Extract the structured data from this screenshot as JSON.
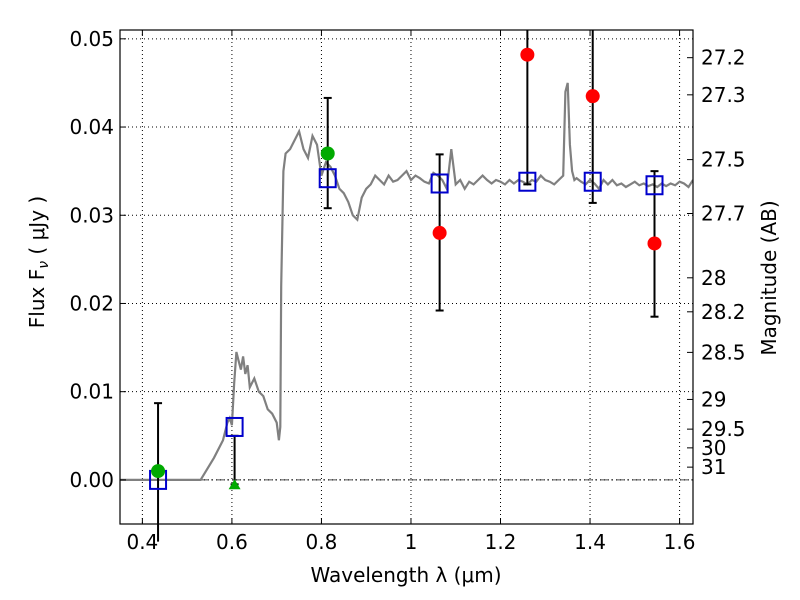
{
  "chart_data": {
    "type": "scatter",
    "xlabel": "Wavelength  λ (μm)",
    "ylabel": "Flux  F",
    "ylabel_sub": "ν",
    "ylabel_unit": " ( μJy )",
    "y2label": "Magnitude (AB)",
    "xlim": [
      0.35,
      1.63
    ],
    "ylim": [
      -0.005,
      0.051
    ],
    "grid": true,
    "x_ticks": [
      {
        "value": 0.4,
        "label": "0.4"
      },
      {
        "value": 0.6,
        "label": "0.6"
      },
      {
        "value": 0.8,
        "label": "0.8"
      },
      {
        "value": 1.0,
        "label": "1"
      },
      {
        "value": 1.2,
        "label": "1.2"
      },
      {
        "value": 1.4,
        "label": "1.4"
      },
      {
        "value": 1.6,
        "label": "1.6"
      }
    ],
    "y_ticks": [
      {
        "value": 0.0,
        "label": "0.00"
      },
      {
        "value": 0.01,
        "label": "0.01"
      },
      {
        "value": 0.02,
        "label": "0.02"
      },
      {
        "value": 0.03,
        "label": "0.03"
      },
      {
        "value": 0.04,
        "label": "0.04"
      },
      {
        "value": 0.05,
        "label": "0.05"
      }
    ],
    "mag_ticks": [
      {
        "value": 27.2,
        "label": "27.2"
      },
      {
        "value": 27.3,
        "label": "27.3"
      },
      {
        "value": 27.5,
        "label": "27.5"
      },
      {
        "value": 27.7,
        "label": "27.7"
      },
      {
        "value": 28.0,
        "label": "28"
      },
      {
        "value": 28.2,
        "label": "28.2"
      },
      {
        "value": 28.5,
        "label": "28.5"
      },
      {
        "value": 29.0,
        "label": "29"
      },
      {
        "value": 29.5,
        "label": "29.5"
      },
      {
        "value": 30.0,
        "label": "30"
      },
      {
        "value": 31.0,
        "label": "31"
      }
    ],
    "model_spectrum": {
      "color": "#808080",
      "x": [
        0.35,
        0.53,
        0.56,
        0.58,
        0.585,
        0.59,
        0.595,
        0.6,
        0.605,
        0.61,
        0.615,
        0.62,
        0.625,
        0.63,
        0.635,
        0.64,
        0.65,
        0.66,
        0.67,
        0.68,
        0.69,
        0.7,
        0.705,
        0.708,
        0.71,
        0.715,
        0.72,
        0.73,
        0.74,
        0.75,
        0.76,
        0.77,
        0.78,
        0.79,
        0.8,
        0.81,
        0.82,
        0.83,
        0.84,
        0.85,
        0.86,
        0.87,
        0.88,
        0.89,
        0.9,
        0.91,
        0.92,
        0.93,
        0.94,
        0.95,
        0.96,
        0.97,
        0.98,
        0.99,
        1.0,
        1.01,
        1.02,
        1.03,
        1.04,
        1.05,
        1.06,
        1.07,
        1.08,
        1.09,
        1.1,
        1.11,
        1.12,
        1.13,
        1.14,
        1.15,
        1.16,
        1.17,
        1.18,
        1.19,
        1.2,
        1.21,
        1.22,
        1.23,
        1.24,
        1.25,
        1.26,
        1.27,
        1.28,
        1.29,
        1.3,
        1.31,
        1.32,
        1.33,
        1.34,
        1.345,
        1.35,
        1.355,
        1.36,
        1.365,
        1.37,
        1.38,
        1.39,
        1.4,
        1.41,
        1.42,
        1.43,
        1.44,
        1.45,
        1.46,
        1.47,
        1.48,
        1.49,
        1.5,
        1.51,
        1.52,
        1.53,
        1.54,
        1.55,
        1.56,
        1.57,
        1.58,
        1.59,
        1.6,
        1.61,
        1.62,
        1.63
      ],
      "y": [
        0.0,
        0.0,
        0.0025,
        0.0045,
        0.0055,
        0.0065,
        0.007,
        0.0062,
        0.011,
        0.0145,
        0.0135,
        0.0125,
        0.014,
        0.012,
        0.013,
        0.0105,
        0.0115,
        0.01,
        0.0095,
        0.008,
        0.0075,
        0.0065,
        0.0045,
        0.006,
        0.022,
        0.035,
        0.037,
        0.0375,
        0.0385,
        0.0395,
        0.0375,
        0.0365,
        0.039,
        0.038,
        0.0345,
        0.036,
        0.0355,
        0.0345,
        0.033,
        0.0325,
        0.0315,
        0.03,
        0.0295,
        0.032,
        0.033,
        0.0335,
        0.0345,
        0.034,
        0.0335,
        0.0345,
        0.0338,
        0.034,
        0.0345,
        0.035,
        0.034,
        0.0345,
        0.0342,
        0.0338,
        0.0336,
        0.0348,
        0.0345,
        0.034,
        0.033,
        0.0375,
        0.0335,
        0.034,
        0.033,
        0.0338,
        0.0335,
        0.034,
        0.0345,
        0.034,
        0.0336,
        0.034,
        0.0338,
        0.0335,
        0.034,
        0.0336,
        0.034,
        0.0338,
        0.0335,
        0.034,
        0.0338,
        0.0345,
        0.034,
        0.0338,
        0.0335,
        0.034,
        0.0345,
        0.044,
        0.045,
        0.038,
        0.035,
        0.034,
        0.0342,
        0.0338,
        0.0335,
        0.034,
        0.0336,
        0.033,
        0.034,
        0.0335,
        0.034,
        0.0334,
        0.0336,
        0.0332,
        0.0335,
        0.0338,
        0.0334,
        0.0336,
        0.0333,
        0.0335,
        0.0332,
        0.0336,
        0.0333,
        0.0336,
        0.0334,
        0.0338,
        0.0336,
        0.0332,
        0.034
      ]
    },
    "model_photometry": {
      "color": "#0000cc",
      "x": [
        0.435,
        0.606,
        0.814,
        1.064,
        1.26,
        1.406,
        1.544
      ],
      "y": [
        0.0,
        0.006,
        0.0342,
        0.0336,
        0.0338,
        0.0338,
        0.0334
      ]
    },
    "observed_points": [
      {
        "x": 0.435,
        "y": 0.001,
        "err_lo": -0.007,
        "err_hi": 0.0087,
        "color": "#00aa00",
        "marker": "circle"
      },
      {
        "x": 0.606,
        "y": -0.0005,
        "err_lo": -0.0005,
        "err_hi": 0.005,
        "color": "#00aa00",
        "marker": "triangle"
      },
      {
        "x": 0.814,
        "y": 0.037,
        "err_lo": 0.0308,
        "err_hi": 0.0433,
        "color": "#00aa00",
        "marker": "circle"
      },
      {
        "x": 1.064,
        "y": 0.028,
        "err_lo": 0.0192,
        "err_hi": 0.0369,
        "color": "#ff0000",
        "marker": "circle"
      },
      {
        "x": 1.26,
        "y": 0.0482,
        "err_lo": 0.0335,
        "err_hi": 0.051,
        "color": "#ff0000",
        "marker": "circle"
      },
      {
        "x": 1.406,
        "y": 0.0435,
        "err_lo": 0.0314,
        "err_hi": 0.051,
        "color": "#ff0000",
        "marker": "circle"
      },
      {
        "x": 1.544,
        "y": 0.0268,
        "err_lo": 0.0185,
        "err_hi": 0.035,
        "color": "#ff0000",
        "marker": "circle"
      }
    ]
  }
}
